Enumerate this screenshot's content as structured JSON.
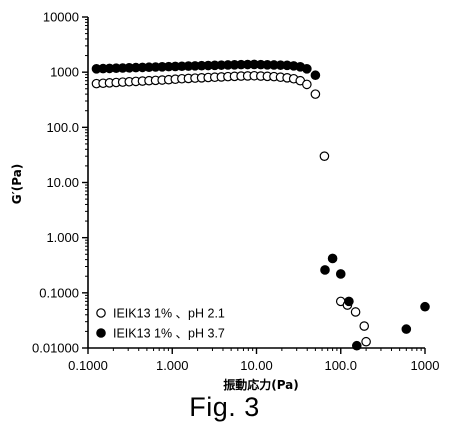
{
  "caption": "Fig. 3",
  "chart_data": {
    "type": "scatter",
    "title": "",
    "xlabel": "振動応力(Pa)",
    "ylabel": "G′(Pa)",
    "xscale": "log",
    "yscale": "log",
    "xlim": [
      0.1,
      1000
    ],
    "ylim": [
      0.01,
      10000
    ],
    "x_ticks": [
      0.1,
      1,
      10,
      100,
      1000
    ],
    "x_tick_labels": [
      "0.1000",
      "1.000",
      "10.00",
      "100.0",
      "1000"
    ],
    "y_ticks": [
      0.01,
      0.1,
      1,
      10,
      100,
      1000,
      10000
    ],
    "y_tick_labels": [
      "0.01000",
      "0.1000",
      "1.000",
      "10.00",
      "100.0",
      "1000",
      "10000"
    ],
    "grid": false,
    "legend_position": "bottom-left",
    "series": [
      {
        "name": "IEIK13 1% 、pH 2.1",
        "marker": "open-circle",
        "color": "#000000",
        "x": [
          0.126,
          0.151,
          0.18,
          0.216,
          0.258,
          0.309,
          0.37,
          0.443,
          0.53,
          0.634,
          0.759,
          0.908,
          1.087,
          1.301,
          1.557,
          1.864,
          2.231,
          2.671,
          3.197,
          3.826,
          4.58,
          5.482,
          6.561,
          7.853,
          9.399,
          11.25,
          13.46,
          16.12,
          19.29,
          23.09,
          27.63,
          33.08,
          39.59,
          50.0,
          64.0,
          100.0,
          120.0,
          150.0,
          190.0,
          200.0
        ],
        "y": [
          620,
          630,
          640,
          650,
          660,
          670,
          680,
          690,
          700,
          710,
          720,
          730,
          745,
          760,
          770,
          780,
          790,
          800,
          810,
          820,
          830,
          840,
          850,
          855,
          860,
          850,
          840,
          830,
          810,
          790,
          760,
          700,
          600,
          400,
          30,
          0.07,
          0.06,
          0.045,
          0.025,
          0.013
        ]
      },
      {
        "name": "IEIK13 1% 、pH 3.7",
        "marker": "filled-circle",
        "color": "#000000",
        "x": [
          0.126,
          0.151,
          0.18,
          0.216,
          0.258,
          0.309,
          0.37,
          0.443,
          0.53,
          0.634,
          0.759,
          0.908,
          1.087,
          1.301,
          1.557,
          1.864,
          2.231,
          2.671,
          3.197,
          3.826,
          4.58,
          5.482,
          6.561,
          7.853,
          9.399,
          11.25,
          13.46,
          16.12,
          19.29,
          23.09,
          27.63,
          33.08,
          39.59,
          50.0,
          65.0,
          80.0,
          100.0,
          125.0,
          155.0,
          600.0,
          1000.0
        ],
        "y": [
          1150,
          1160,
          1170,
          1180,
          1190,
          1200,
          1210,
          1220,
          1230,
          1240,
          1250,
          1260,
          1270,
          1280,
          1290,
          1300,
          1310,
          1320,
          1330,
          1340,
          1350,
          1360,
          1370,
          1375,
          1380,
          1370,
          1360,
          1350,
          1340,
          1330,
          1300,
          1250,
          1150,
          880,
          0.26,
          0.42,
          0.22,
          0.07,
          0.011,
          0.022,
          0.056
        ]
      }
    ]
  }
}
